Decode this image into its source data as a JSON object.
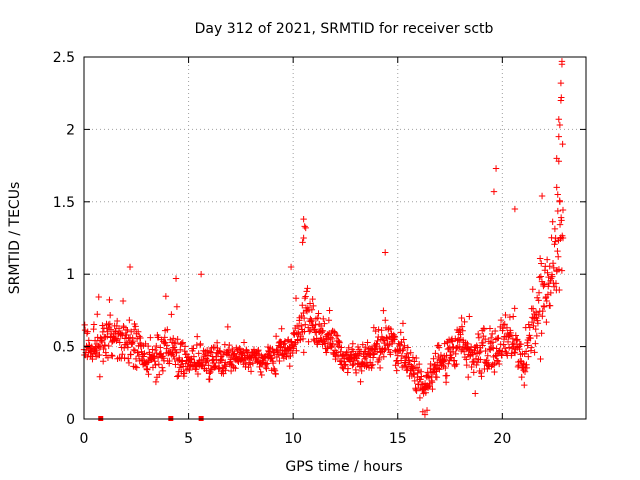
{
  "chart_data": {
    "type": "scatter",
    "title": "Day 312 of 2021, SRMTID for receiver sctb",
    "xlabel": "GPS time / hours",
    "ylabel": "SRMTID / TECUs",
    "xlim": [
      0,
      24
    ],
    "ylim": [
      0,
      2.5
    ],
    "xticks": [
      0,
      5,
      10,
      15,
      20
    ],
    "xtick_labels": [
      "0",
      "5",
      "10",
      "15",
      "20"
    ],
    "yticks": [
      0,
      0.5,
      1,
      1.5,
      2,
      2.5
    ],
    "ytick_labels": [
      "0",
      "0.5",
      "1",
      "1.5",
      "2",
      "2.5"
    ],
    "grid": true,
    "marker": "+",
    "color": "#ff0000",
    "zero_markers_x": [
      0.8,
      4.15,
      5.6
    ],
    "trend": [
      {
        "x": 0.0,
        "y": 0.5,
        "spread": 0.16
      },
      {
        "x": 1.0,
        "y": 0.52,
        "spread": 0.17
      },
      {
        "x": 2.0,
        "y": 0.58,
        "spread": 0.18
      },
      {
        "x": 3.0,
        "y": 0.42,
        "spread": 0.17
      },
      {
        "x": 4.0,
        "y": 0.45,
        "spread": 0.17
      },
      {
        "x": 5.0,
        "y": 0.4,
        "spread": 0.16
      },
      {
        "x": 6.0,
        "y": 0.38,
        "spread": 0.15
      },
      {
        "x": 7.0,
        "y": 0.42,
        "spread": 0.12
      },
      {
        "x": 8.0,
        "y": 0.42,
        "spread": 0.1
      },
      {
        "x": 9.0,
        "y": 0.44,
        "spread": 0.12
      },
      {
        "x": 10.0,
        "y": 0.5,
        "spread": 0.14
      },
      {
        "x": 10.6,
        "y": 0.7,
        "spread": 0.22
      },
      {
        "x": 11.5,
        "y": 0.55,
        "spread": 0.15
      },
      {
        "x": 12.5,
        "y": 0.42,
        "spread": 0.12
      },
      {
        "x": 13.5,
        "y": 0.4,
        "spread": 0.12
      },
      {
        "x": 14.5,
        "y": 0.55,
        "spread": 0.16
      },
      {
        "x": 15.5,
        "y": 0.38,
        "spread": 0.14
      },
      {
        "x": 16.3,
        "y": 0.22,
        "spread": 0.1
      },
      {
        "x": 17.0,
        "y": 0.4,
        "spread": 0.16
      },
      {
        "x": 18.0,
        "y": 0.48,
        "spread": 0.2
      },
      {
        "x": 19.0,
        "y": 0.45,
        "spread": 0.22
      },
      {
        "x": 20.0,
        "y": 0.55,
        "spread": 0.25
      },
      {
        "x": 21.0,
        "y": 0.4,
        "spread": 0.2
      },
      {
        "x": 21.8,
        "y": 0.8,
        "spread": 0.3
      },
      {
        "x": 22.5,
        "y": 1.1,
        "spread": 0.4
      },
      {
        "x": 22.9,
        "y": 1.3,
        "spread": 0.4
      }
    ],
    "notable_points": [
      {
        "x": 10.5,
        "y": 1.38
      },
      {
        "x": 10.55,
        "y": 1.33
      },
      {
        "x": 10.6,
        "y": 1.32
      },
      {
        "x": 10.5,
        "y": 1.25
      },
      {
        "x": 10.45,
        "y": 1.22
      },
      {
        "x": 19.7,
        "y": 1.73
      },
      {
        "x": 19.6,
        "y": 1.57
      },
      {
        "x": 20.6,
        "y": 1.45
      },
      {
        "x": 21.9,
        "y": 1.54
      },
      {
        "x": 22.6,
        "y": 1.8
      },
      {
        "x": 22.7,
        "y": 1.78
      },
      {
        "x": 22.75,
        "y": 2.03
      },
      {
        "x": 22.7,
        "y": 2.07
      },
      {
        "x": 22.8,
        "y": 2.2
      },
      {
        "x": 22.82,
        "y": 2.22
      },
      {
        "x": 22.8,
        "y": 2.32
      },
      {
        "x": 22.85,
        "y": 2.45
      },
      {
        "x": 22.85,
        "y": 2.47
      },
      {
        "x": 22.7,
        "y": 1.95
      },
      {
        "x": 22.6,
        "y": 1.6
      },
      {
        "x": 22.65,
        "y": 1.55
      },
      {
        "x": 22.75,
        "y": 1.5
      },
      {
        "x": 22.9,
        "y": 1.25
      },
      {
        "x": 16.2,
        "y": 0.05
      },
      {
        "x": 16.3,
        "y": 0.03
      },
      {
        "x": 16.4,
        "y": 0.06
      },
      {
        "x": 14.4,
        "y": 1.15
      },
      {
        "x": 9.9,
        "y": 1.05
      },
      {
        "x": 2.2,
        "y": 1.05
      },
      {
        "x": 4.4,
        "y": 0.97
      },
      {
        "x": 5.6,
        "y": 1.0
      }
    ],
    "n_points": 1300,
    "seed": 312
  }
}
